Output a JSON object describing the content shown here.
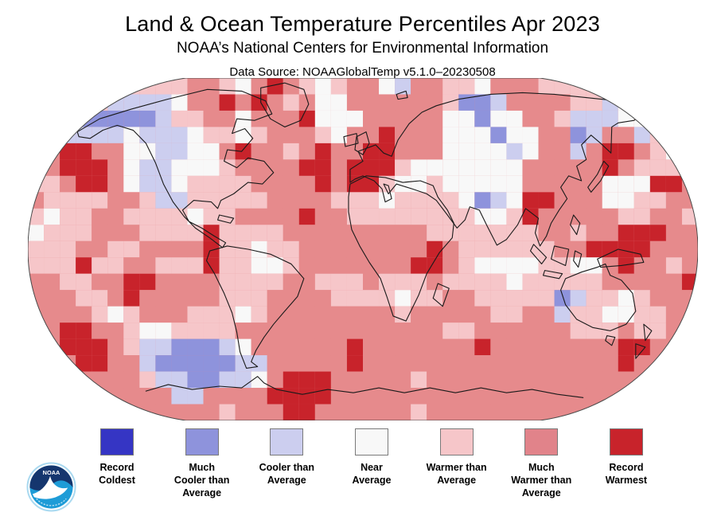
{
  "header": {
    "title": "Land & Ocean Temperature Percentiles Apr 2023",
    "subtitle": "NOAA’s National Centers for Environmental Information",
    "data_source": "Data Source: NOAAGlobalTemp v5.1.0–20230508"
  },
  "logo": {
    "text": "NOAA",
    "colors": {
      "ring": "#a9d9f0",
      "navy": "#15366e",
      "cyan": "#1e9cd7",
      "swoosh": "#ffffff"
    }
  },
  "legend": {
    "items": [
      {
        "label": "Record\nColdest",
        "color": "#3535c4"
      },
      {
        "label": "Much\nCooler than\nAverage",
        "color": "#8e93dc"
      },
      {
        "label": "Cooler than\nAverage",
        "color": "#ccceef"
      },
      {
        "label": "Near\nAverage",
        "color": "#f8f8f8"
      },
      {
        "label": "Warmer than\nAverage",
        "color": "#f6c6c9"
      },
      {
        "label": "Much\nWarmer than\nAverage",
        "color": "#e1838a"
      },
      {
        "label": "Record\nWarmest",
        "color": "#c8232b"
      }
    ]
  },
  "chart_data": {
    "type": "heatmap",
    "title": "Land & Ocean Temperature Percentiles Apr 2023",
    "subtitle": "NOAA’s National Centers for Environmental Information",
    "data_source": "Data Source: NOAAGlobalTemp v5.1.0–20230508",
    "categories": [
      "Record Coldest",
      "Much Cooler than Average",
      "Cooler than Average",
      "Near Average",
      "Warmer than Average",
      "Much Warmer than Average",
      "Record Warmest"
    ],
    "category_colors": [
      "#3535c4",
      "#8e93dc",
      "#ccceef",
      "#f8f8f8",
      "#f6c6c9",
      "#e1838a",
      "#c8232b"
    ],
    "cell_size": 20,
    "palette": {
      "B": "#3535c4",
      "b": "#8e93dc",
      "c": "#ccceef",
      "w": "#f8f8f8",
      "p": "#f6c6c9",
      "r": "#e68a8c",
      "R": "#c8232b"
    },
    "palette_meaning": {
      "B": "Record Coldest",
      "b": "Much Cooler than Average",
      "c": "Cooler than Average",
      "w": "Near Average",
      "p": "Warmer than Average",
      "r": "Much Warmer than Average",
      "R": "Record Warmest"
    },
    "grid": [
      "pppppppppprrpwrRrpwprrwcrrppwrrrpppppppppp",
      "pppppccccwrrRrRrprwwrrrrrrpbbcrrrrppcwcwpp",
      "ppcbbbbbcpprrwrrrRwwwrrrrrwwbwwrrpcccwwwpp",
      "rpccccwcccwppwprrrpwrrRrrrwwwbwwrrbcrrcppr",
      "rrRRrrwwccwwrRrrprRrrRRrrrwwwwcwrrcrRRrpwp",
      "prRRRrwccwwwprrrrRRrRRRpwwwwwwwrrrrrRrpppr",
      "pprRRrwccwpppprrrrRrRRpwwpwwwwwrrrrrwwwRRr",
      "rpppprrpccppppprrrrpppwppppwbcwRRrrrwwpprr",
      "pwpprrppppwpprrrrRrrppppppppwwpRrrrrrpprrp",
      "wppprrrppppRpppprrrrrrrrrppppppprrprrRRRrr",
      "ppprrpprrrrRppwpprrrrrrrrRrpppppprrRRRRrrr",
      "pppRpprrpppRppwwprrrrrrrRRrpwwwwppwwrRrrpr",
      "rrpprrRRrrrrpppprrppprppprppppwppppprrrrrR",
      "rrrpprRrrrrrppprrrrppppwpprrpppppbcppwprrr",
      "rrrrpwprrrpppwprrrrrrrrprrrrrpprrcppwwpprr",
      "rrRRrrpwwpppprrrrrrrrrrrrrpprrrrrrppprpprr",
      "rrRRRrpccbbbcwrrrrrrRrrrrrrrRrrrrrrrrRRrrr",
      "rrrRRrrcbbbbbccrrrrrRrrrrrrrrrrrrrrrrRrrrr",
      "rrrrrrrpccbbccwrRRRrrrrrprrrrrrrrrrrrrrrrr",
      "rrrrrrrrrccrrrrRRRRrrrrrrrrrrrrrrrrrrrrrrr",
      "rrrrrrrrrrrrprrrRRrrrrrrprrrrrrrrrrrrrrrrr"
    ]
  }
}
